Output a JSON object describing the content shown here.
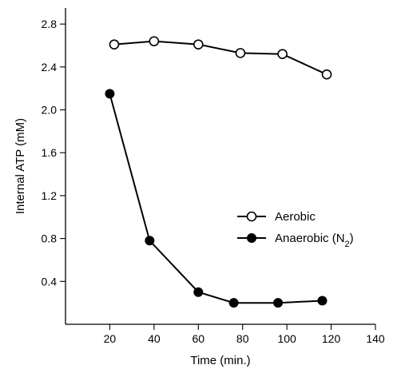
{
  "chart_data": {
    "type": "line",
    "xlabel": "Time (min.)",
    "ylabel": "Internal ATP (mM)",
    "xlim": [
      0,
      140
    ],
    "ylim": [
      0,
      2.95
    ],
    "xticks": [
      20,
      40,
      60,
      80,
      100,
      120,
      140
    ],
    "xtick_labels": [
      "20",
      "40",
      "60",
      "80",
      "100",
      "120",
      "140"
    ],
    "yticks": [
      0.4,
      0.8,
      1.2,
      1.6,
      2.0,
      2.4,
      2.8
    ],
    "ytick_labels": [
      "0.4",
      "0.8",
      "1.2",
      "1.6",
      "2.0",
      "2.4",
      "2.8"
    ],
    "grid": false,
    "legend_position": "center-right",
    "series": [
      {
        "name": "Aerobic",
        "marker": "open-circle",
        "x": [
          22,
          40,
          60,
          79,
          98,
          118
        ],
        "y": [
          2.61,
          2.64,
          2.61,
          2.53,
          2.52,
          2.33
        ]
      },
      {
        "name": "Anaerobic (N",
        "name_subscript": "2",
        "name_suffix": ")",
        "marker": "filled-circle",
        "x": [
          20,
          38,
          60,
          76,
          96,
          116
        ],
        "y": [
          2.15,
          0.78,
          0.3,
          0.2,
          0.2,
          0.22
        ]
      }
    ]
  }
}
